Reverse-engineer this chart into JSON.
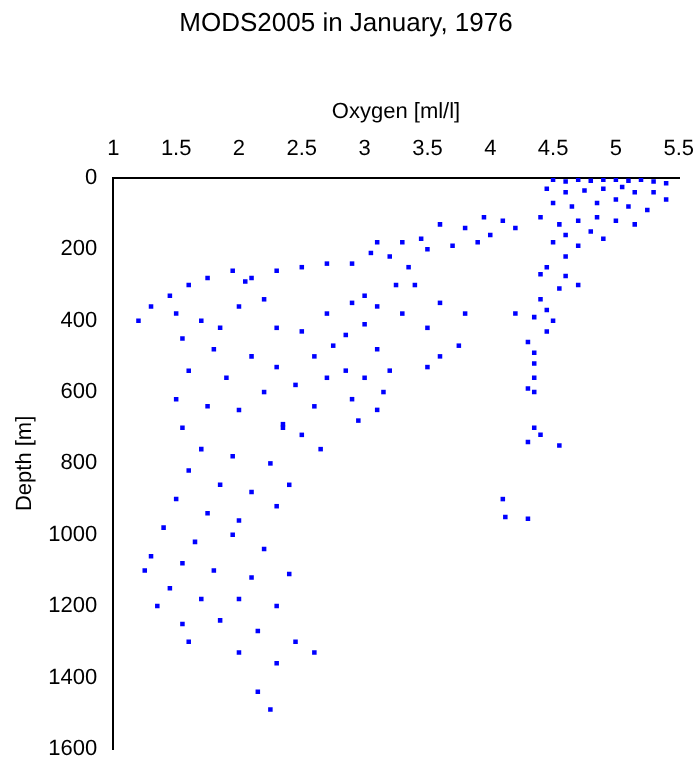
{
  "chart_data": {
    "type": "scatter",
    "title": "MODS2005 in January, 1976",
    "xlabel": "Oxygen [ml/l]",
    "ylabel": "Depth [m]",
    "xlim": [
      1,
      5.5
    ],
    "xticks": [
      1,
      1.5,
      2,
      2.5,
      3,
      3.5,
      4,
      4.5,
      5,
      5.5
    ],
    "ylim": [
      1600,
      0
    ],
    "yticks": [
      0,
      200,
      400,
      600,
      800,
      1000,
      1200,
      1400,
      1600
    ],
    "marker": "square",
    "series": [
      {
        "color": "#0000ff",
        "x": [
          4.5,
          4.6,
          4.7,
          4.8,
          4.9,
          5.0,
          5.1,
          5.2,
          5.3,
          5.4,
          4.45,
          4.6,
          4.75,
          4.9,
          5.05,
          5.15,
          5.3,
          5.4,
          4.5,
          4.65,
          4.85,
          5.0,
          5.1,
          5.25,
          4.4,
          4.55,
          4.7,
          4.85,
          5.0,
          5.15,
          4.6,
          4.8,
          4.5,
          4.7,
          4.9,
          4.6,
          4.45,
          4.2,
          4.1,
          3.95,
          3.8,
          3.6,
          3.45,
          3.3,
          3.1,
          3.05,
          3.2,
          3.5,
          3.35,
          3.25,
          3.4,
          3.7,
          3.9,
          4.0,
          4.4,
          4.6,
          4.7,
          4.55,
          4.4,
          4.2,
          4.35,
          4.45,
          4.5,
          4.45,
          4.3,
          4.35,
          4.35,
          4.35,
          4.3,
          4.35,
          4.35,
          4.4,
          4.55,
          4.3,
          4.1,
          4.12,
          4.3,
          2.7,
          2.9,
          2.5,
          2.3,
          2.1,
          3.0,
          3.1,
          2.7,
          2.9,
          3.3,
          3.6,
          3.8,
          3.0,
          3.5,
          2.85,
          2.75,
          3.1,
          2.6,
          2.85,
          3.2,
          3.5,
          3.6,
          3.75,
          3.0,
          3.15,
          2.7,
          2.9,
          3.1,
          2.6,
          2.95,
          2.65,
          2.5,
          2.35,
          1.2,
          1.3,
          1.45,
          1.6,
          1.75,
          1.95,
          2.05,
          1.5,
          1.7,
          1.85,
          2.0,
          2.2,
          2.3,
          2.5,
          1.55,
          1.8,
          2.1,
          2.3,
          1.6,
          1.9,
          2.2,
          2.45,
          1.5,
          1.75,
          2.0,
          2.35,
          1.55,
          1.7,
          1.95,
          2.25,
          1.6,
          1.85,
          2.1,
          2.4,
          1.5,
          1.75,
          2.0,
          2.3,
          1.4,
          1.65,
          1.95,
          2.2,
          1.3,
          1.55,
          1.8,
          2.1,
          2.4,
          1.45,
          1.7,
          2.0,
          2.3,
          1.55,
          1.85,
          2.15,
          2.45,
          1.6,
          2.0,
          2.3,
          2.15,
          2.25,
          2.6,
          1.35,
          1.25
        ],
        "values": [
          5,
          10,
          5,
          8,
          5,
          5,
          8,
          5,
          10,
          15,
          30,
          40,
          35,
          30,
          25,
          40,
          40,
          60,
          70,
          80,
          70,
          60,
          80,
          90,
          110,
          130,
          120,
          110,
          120,
          130,
          160,
          150,
          180,
          190,
          170,
          220,
          250,
          140,
          120,
          110,
          140,
          130,
          170,
          180,
          180,
          210,
          220,
          200,
          250,
          300,
          300,
          190,
          180,
          160,
          270,
          275,
          300,
          310,
          340,
          380,
          390,
          370,
          400,
          430,
          460,
          490,
          520,
          560,
          590,
          600,
          700,
          720,
          750,
          740,
          900,
          950,
          955,
          240,
          240,
          250,
          260,
          280,
          330,
          360,
          380,
          350,
          380,
          350,
          380,
          410,
          420,
          440,
          470,
          480,
          500,
          540,
          540,
          530,
          500,
          470,
          560,
          600,
          560,
          620,
          650,
          640,
          680,
          760,
          720,
          700,
          400,
          360,
          330,
          300,
          280,
          260,
          290,
          380,
          400,
          420,
          360,
          340,
          420,
          430,
          450,
          480,
          500,
          530,
          540,
          560,
          600,
          580,
          620,
          640,
          650,
          690,
          700,
          760,
          780,
          800,
          820,
          860,
          880,
          860,
          900,
          940,
          960,
          920,
          980,
          1020,
          1000,
          1040,
          1060,
          1080,
          1100,
          1120,
          1110,
          1150,
          1180,
          1180,
          1200,
          1250,
          1240,
          1270,
          1300,
          1300,
          1330,
          1360,
          1440,
          1490,
          1330,
          1200,
          1100
        ]
      }
    ]
  }
}
